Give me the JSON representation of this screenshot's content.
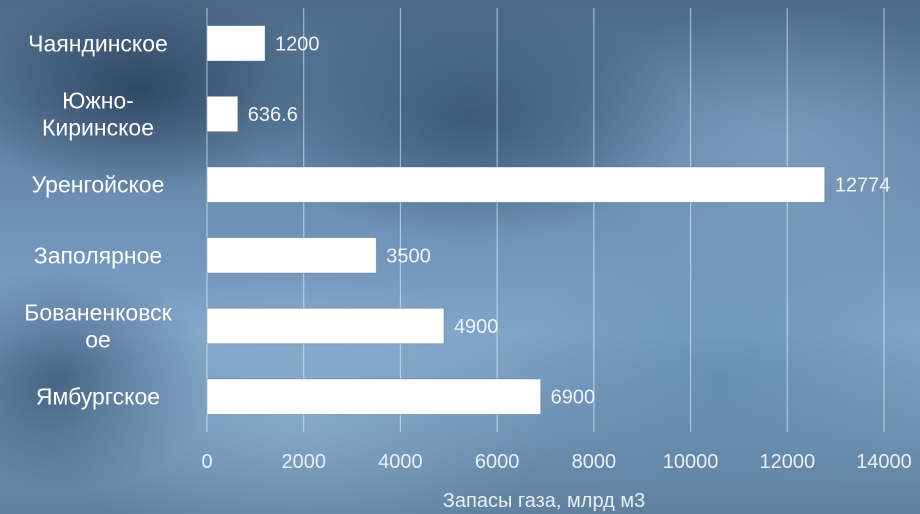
{
  "chart_data": {
    "type": "bar",
    "orientation": "horizontal",
    "categories": [
      "Ямбургское",
      "Бованенковское",
      "Заполярное",
      "Уренгойское",
      "Южно-Киринское",
      "Чаяндинское"
    ],
    "category_lines": [
      [
        "Ямбургское"
      ],
      [
        "Бованенковск",
        "ое"
      ],
      [
        "Заполярное"
      ],
      [
        "Уренгойское"
      ],
      [
        "Южно-",
        "Киринское"
      ],
      [
        "Чаяндинское"
      ]
    ],
    "values": [
      6900,
      4900,
      3500,
      12774,
      636.6,
      1200
    ],
    "value_labels": [
      "6900",
      "4900",
      "3500",
      "12774",
      "636.6",
      "1200"
    ],
    "xlabel": "Запасы газа, млрд м3",
    "ylabel": "",
    "xlim": [
      0,
      14000
    ],
    "xticks": [
      0,
      2000,
      4000,
      6000,
      8000,
      10000,
      12000,
      14000
    ],
    "grid": "vertical",
    "bar_color": "#ffffff"
  }
}
